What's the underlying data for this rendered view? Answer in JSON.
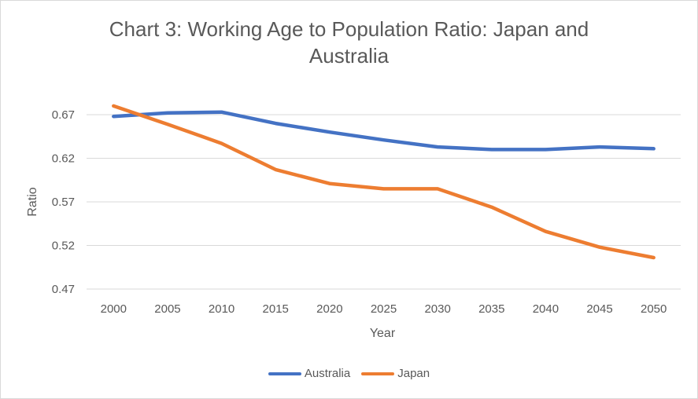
{
  "chart_data": {
    "type": "line",
    "title": "Chart 3: Working Age to Population Ratio: Japan and Australia",
    "title_lines": [
      "Chart 3: Working Age to Population Ratio: Japan and",
      "Australia"
    ],
    "xlabel": "Year",
    "ylabel": "Ratio",
    "categories": [
      "2000",
      "2005",
      "2010",
      "2015",
      "2020",
      "2025",
      "2030",
      "2035",
      "2040",
      "2045",
      "2050"
    ],
    "yticks": [
      0.47,
      0.52,
      0.57,
      0.62,
      0.67
    ],
    "ytick_labels": [
      "0.47",
      "0.52",
      "0.57",
      "0.62",
      "0.67"
    ],
    "ylim": [
      0.47,
      0.67
    ],
    "grid": true,
    "legend_position": "bottom",
    "series": [
      {
        "name": "Australia",
        "color": "#4472C4",
        "values": [
          0.668,
          0.672,
          0.673,
          0.66,
          0.65,
          0.641,
          0.633,
          0.63,
          0.63,
          0.633,
          0.631
        ]
      },
      {
        "name": "Japan",
        "color": "#ED7D31",
        "values": [
          0.68,
          0.659,
          0.637,
          0.607,
          0.591,
          0.585,
          0.585,
          0.564,
          0.536,
          0.518,
          0.506
        ]
      }
    ]
  }
}
